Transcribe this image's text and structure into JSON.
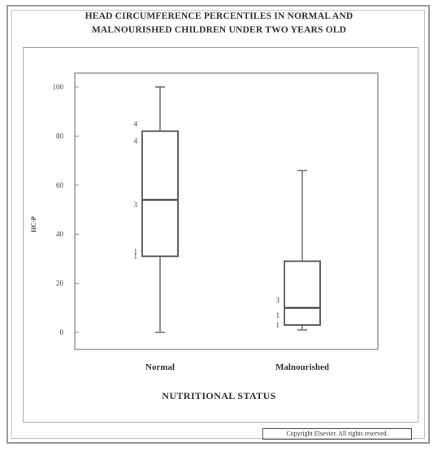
{
  "chart_data": {
    "type": "box",
    "title": "HEAD CIRCUMFERENCE PERCENTILES IN NORMAL AND MALNOURISHED CHILDREN UNDER TWO YEARS OLD",
    "title_lines": [
      "HEAD CIRCUMFERENCE PERCENTILES IN NORMAL AND",
      "MALNOURISHED CHILDREN UNDER TWO YEARS OLD"
    ],
    "xlabel": "NUTRITIONAL STATUS",
    "ylabel": "HC-P",
    "ylim": [
      0,
      100
    ],
    "yticks": [
      0,
      20,
      40,
      60,
      80,
      100
    ],
    "grid": false,
    "categories": [
      "Normal",
      "Malnourished"
    ],
    "boxes": [
      {
        "category": "Normal",
        "min": 0,
        "q1": 31,
        "median": 54,
        "q3": 82,
        "max": 100
      },
      {
        "category": "Malnourished",
        "min": 1,
        "q1": 3,
        "median": 10,
        "q3": 29,
        "max": 66
      }
    ],
    "point_labels": [
      {
        "category": "Normal",
        "points": [
          {
            "value": 0,
            "label": ""
          },
          {
            "value": 31,
            "label": "1"
          },
          {
            "value": 33,
            "label": "1"
          },
          {
            "value": 52,
            "label": "3"
          },
          {
            "value": 78,
            "label": "4"
          },
          {
            "value": 85,
            "label": "4"
          },
          {
            "value": 100,
            "label": ""
          }
        ]
      },
      {
        "category": "Malnourished",
        "points": [
          {
            "value": 3,
            "label": "1"
          },
          {
            "value": 7,
            "label": "1"
          },
          {
            "value": 13,
            "label": "3"
          }
        ]
      }
    ],
    "colors": {
      "box": "#555555",
      "whisker": "#777777",
      "plot_border": "#999999"
    }
  },
  "footer": "Copyright Elsevier. All rights reserved."
}
